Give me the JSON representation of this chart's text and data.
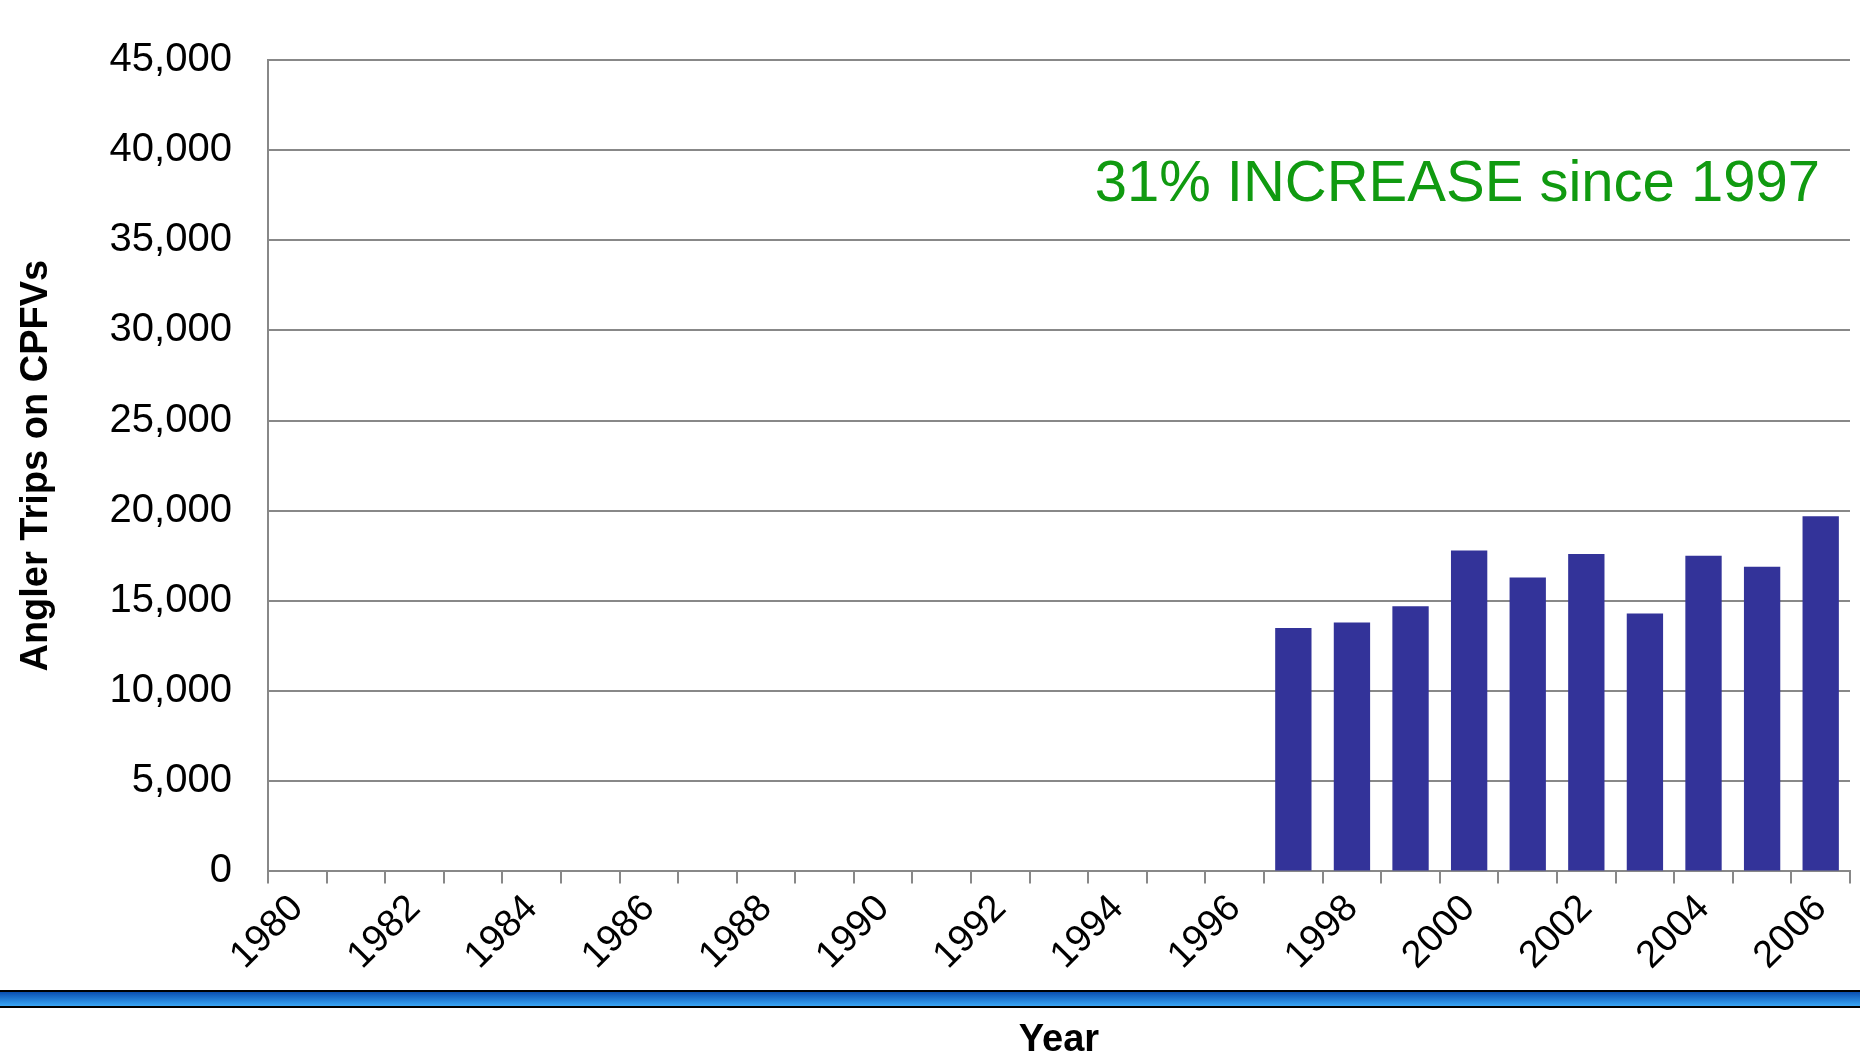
{
  "chart_data": {
    "type": "bar",
    "xlabel": "Year",
    "ylabel": "Angler Trips on CPFVs",
    "categories": [
      "1980",
      null,
      "1982",
      null,
      "1984",
      null,
      "1986",
      null,
      "1988",
      null,
      "1990",
      null,
      "1992",
      null,
      "1994",
      null,
      "1996",
      null,
      "1998",
      null,
      "2000",
      null,
      "2002",
      null,
      "2004",
      null,
      "2006"
    ],
    "values": [
      null,
      null,
      null,
      null,
      null,
      null,
      null,
      null,
      null,
      null,
      null,
      null,
      null,
      null,
      null,
      null,
      null,
      13500,
      13800,
      14700,
      17800,
      16300,
      17600,
      14300,
      17500,
      16900,
      19700
    ],
    "color": "#333399",
    "ylim": [
      0,
      45000
    ],
    "yticks": [
      {
        "value": 0,
        "label": "0"
      },
      {
        "value": 5000,
        "label": "5,000"
      },
      {
        "value": 10000,
        "label": "10,000"
      },
      {
        "value": 15000,
        "label": "15,000"
      },
      {
        "value": 20000,
        "label": "20,000"
      },
      {
        "value": 25000,
        "label": "25,000"
      },
      {
        "value": 30000,
        "label": "30,000"
      },
      {
        "value": 35000,
        "label": "35,000"
      },
      {
        "value": 40000,
        "label": "40,000"
      },
      {
        "value": 45000,
        "label": "45,000"
      }
    ],
    "grid": "y",
    "legend": false,
    "annotations": [
      "31% INCREASE since 1997"
    ]
  }
}
